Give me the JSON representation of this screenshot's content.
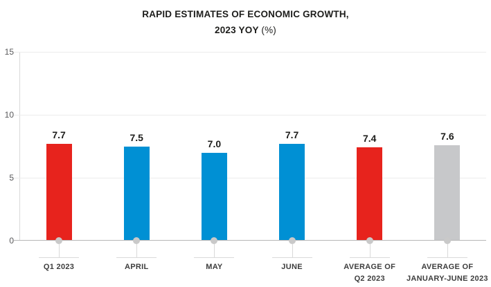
{
  "title": {
    "line1": "RAPID ESTIMATES OF ECONOMIC GROWTH,",
    "line2_main": "2023 YOY",
    "line2_suffix": "(%)"
  },
  "y_axis": {
    "tick_15": "15",
    "tick_10": "10",
    "tick_5": "5",
    "tick_0": "0"
  },
  "chart_data": {
    "type": "bar",
    "title": "RAPID ESTIMATES OF ECONOMIC GROWTH, 2023 YOY (%)",
    "categories": [
      "Q1 2023",
      "APRIL",
      "MAY",
      "JUNE",
      "AVERAGE OF\nQ2 2023",
      "AVERAGE OF\nJANUARY-JUNE 2023"
    ],
    "values": [
      7.7,
      7.5,
      7.0,
      7.7,
      7.4,
      7.6
    ],
    "value_labels": [
      "7.7",
      "7.5",
      "7.0",
      "7.7",
      "7.4",
      "7.6"
    ],
    "bar_colors": [
      "#e7231d",
      "#0090d4",
      "#0090d4",
      "#0090d4",
      "#e7231d",
      "#c7c8ca"
    ],
    "xlabel": "",
    "ylabel": "",
    "ylim": [
      0,
      15
    ],
    "y_ticks": [
      0,
      5,
      10,
      15
    ],
    "grid": true,
    "legend": false
  },
  "colors": {
    "red": "#e7231d",
    "blue": "#0090d4",
    "gray_bar": "#c7c8ca",
    "gridline": "#ececec",
    "baseline": "#b5b5b5",
    "axis_line": "#d9d9d9",
    "marker_dot": "#c9c9c9",
    "title_text": "#1d1d1b",
    "tick_text": "#58585a",
    "category_text": "#3d3d3d"
  }
}
